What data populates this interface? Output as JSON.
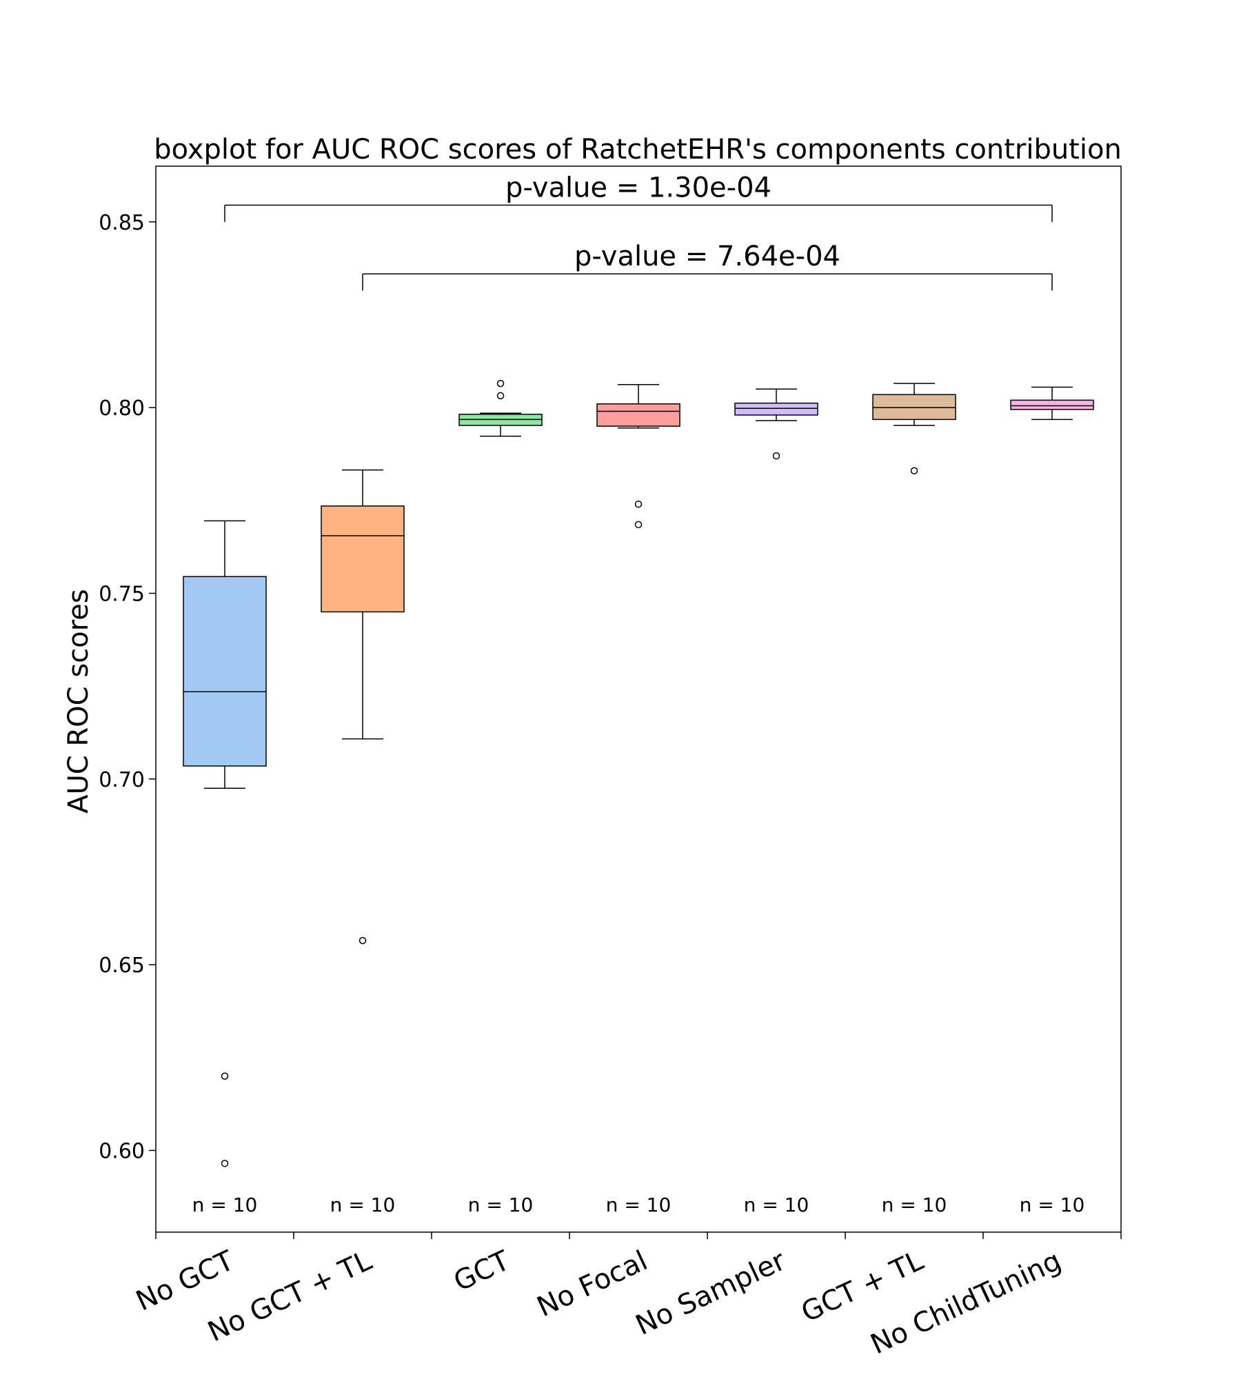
{
  "chart_data": {
    "type": "boxplot",
    "title": "boxplot for AUC ROC scores of RatchetEHR's components contribution",
    "xlabel": "",
    "ylabel": "AUC ROC scores",
    "ylim": [
      0.578,
      0.865
    ],
    "yticks": [
      0.6,
      0.65,
      0.7,
      0.75,
      0.8,
      0.85
    ],
    "ytick_labels": [
      "0.60",
      "0.65",
      "0.70",
      "0.75",
      "0.80",
      "0.85"
    ],
    "categories": [
      "No GCT",
      "No GCT + TL",
      "GCT",
      "No Focal",
      "No Sampler",
      "GCT + TL",
      "No ChildTuning"
    ],
    "colors": [
      "#a1c9f4",
      "#ffb482",
      "#8de5a1",
      "#ff9f9b",
      "#d0bbff",
      "#debb9b",
      "#fab0e4"
    ],
    "boxes": [
      {
        "name": "No GCT",
        "whislo": 0.6975,
        "q1": 0.7035,
        "med": 0.7235,
        "q3": 0.7545,
        "whishi": 0.7695,
        "fliers": [
          0.62,
          0.5965
        ]
      },
      {
        "name": "No GCT + TL",
        "whislo": 0.7108,
        "q1": 0.745,
        "med": 0.7655,
        "q3": 0.7735,
        "whishi": 0.7832,
        "fliers": [
          0.6565
        ]
      },
      {
        "name": "GCT",
        "whislo": 0.7923,
        "q1": 0.7952,
        "med": 0.7968,
        "q3": 0.7982,
        "whishi": 0.7985,
        "fliers": [
          0.8065,
          0.8032
        ]
      },
      {
        "name": "No Focal",
        "whislo": 0.7945,
        "q1": 0.795,
        "med": 0.799,
        "q3": 0.801,
        "whishi": 0.8062,
        "fliers": [
          0.774,
          0.7685
        ]
      },
      {
        "name": "No Sampler",
        "whislo": 0.7965,
        "q1": 0.798,
        "med": 0.7998,
        "q3": 0.8012,
        "whishi": 0.805,
        "fliers": [
          0.787
        ]
      },
      {
        "name": "GCT + TL",
        "whislo": 0.7952,
        "q1": 0.7968,
        "med": 0.8,
        "q3": 0.8035,
        "whishi": 0.8065,
        "fliers": [
          0.783
        ]
      },
      {
        "name": "No ChildTuning",
        "whislo": 0.7968,
        "q1": 0.7995,
        "med": 0.8005,
        "q3": 0.802,
        "whishi": 0.8055,
        "fliers": []
      }
    ],
    "counts": [
      "n = 10",
      "n = 10",
      "n = 10",
      "n = 10",
      "n = 10",
      "n = 10",
      "n = 10"
    ],
    "significance": [
      {
        "from": "No GCT",
        "to": "No ChildTuning",
        "y_bar": 0.8545,
        "y_tip": 0.85,
        "label": "p-value = 1.30e-04"
      },
      {
        "from": "No GCT + TL",
        "to": "No ChildTuning",
        "y_bar": 0.836,
        "y_tip": 0.8315,
        "label": "p-value = 7.64e-04"
      }
    ]
  }
}
